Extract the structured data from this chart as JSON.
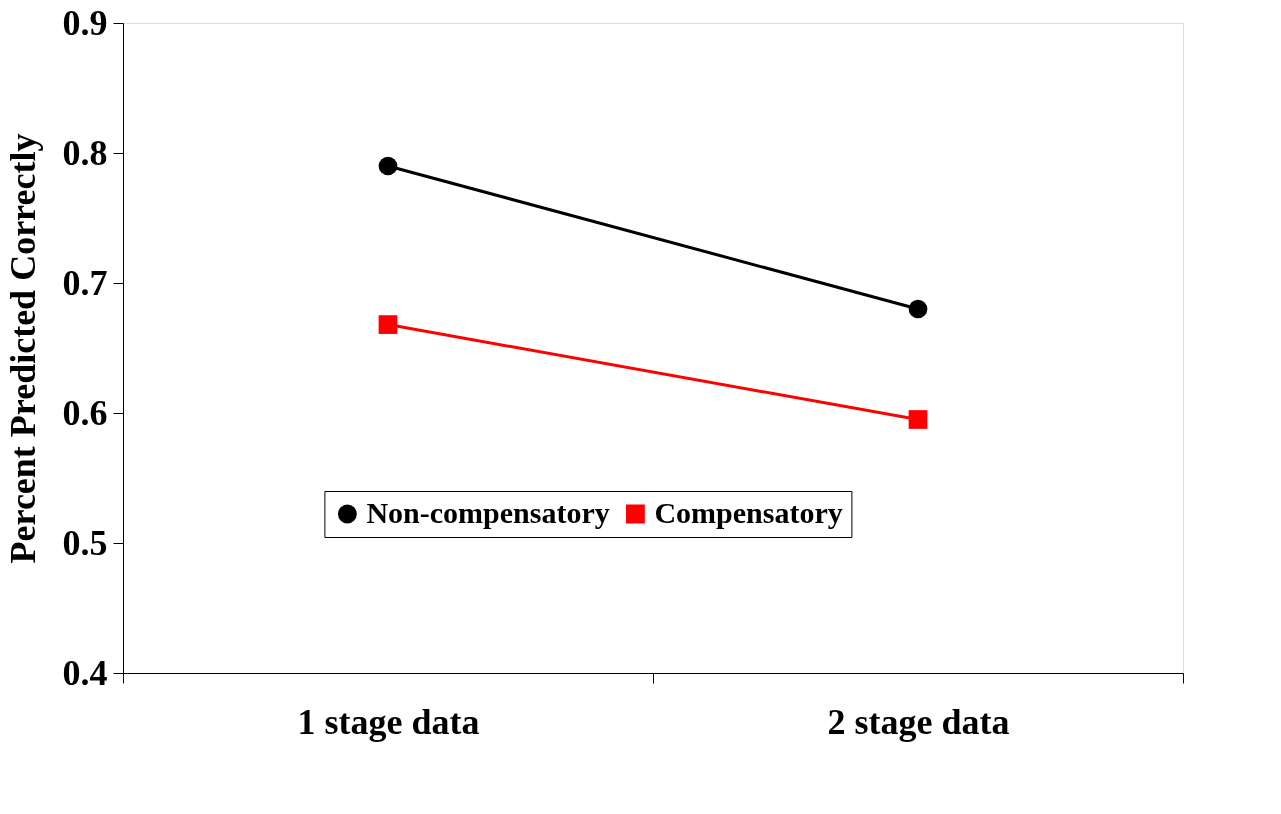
{
  "chart_data": {
    "type": "line",
    "ylabel": "Percent Predicted Correctly",
    "categories": [
      "1 stage data",
      "2 stage data"
    ],
    "series": [
      {
        "name": "Non-compensatory",
        "color": "#000000",
        "marker": "circle",
        "values": [
          0.79,
          0.68
        ]
      },
      {
        "name": "Compensatory",
        "color": "#ff0000",
        "marker": "square",
        "values": [
          0.668,
          0.595
        ]
      }
    ],
    "ylim": [
      0.4,
      0.9
    ],
    "yticks": [
      0.4,
      0.5,
      0.6,
      0.7,
      0.8,
      0.9
    ],
    "grid": false,
    "legend": "center",
    "line_style": "solid"
  }
}
